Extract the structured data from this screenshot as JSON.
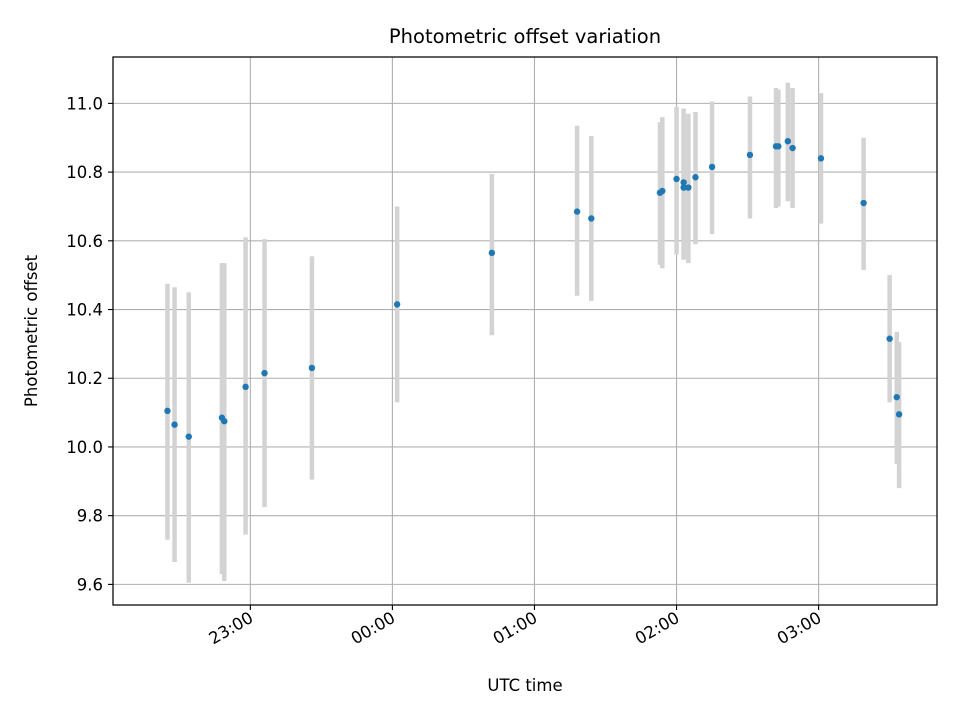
{
  "chart_data": {
    "type": "scatter",
    "title": "Photometric offset variation",
    "xlabel": "UTC time",
    "ylabel": "Photometric offset",
    "x_unit": "UTC time (HH:MM, evening to next morning)",
    "xlim": [
      "22:02",
      "03:50"
    ],
    "ylim": [
      9.54,
      11.135
    ],
    "x_ticks": [
      "23:00",
      "00:00",
      "01:00",
      "02:00",
      "03:00"
    ],
    "y_ticks": [
      "9.6",
      "9.8",
      "10.0",
      "10.2",
      "10.4",
      "10.6",
      "10.8",
      "11.0"
    ],
    "grid": true,
    "colors": {
      "point": "#1f77b4",
      "errorbar": "#d3d3d3",
      "grid": "#b0b0b0"
    },
    "points": [
      {
        "x": "22:25",
        "y": 10.105,
        "ylow": 9.73,
        "yhigh": 10.475
      },
      {
        "x": "22:28",
        "y": 10.065,
        "ylow": 9.665,
        "yhigh": 10.465
      },
      {
        "x": "22:34",
        "y": 10.03,
        "ylow": 9.605,
        "yhigh": 10.45
      },
      {
        "x": "22:48",
        "y": 10.085,
        "ylow": 9.63,
        "yhigh": 10.535
      },
      {
        "x": "22:49",
        "y": 10.075,
        "ylow": 9.61,
        "yhigh": 10.535
      },
      {
        "x": "22:58",
        "y": 10.175,
        "ylow": 9.745,
        "yhigh": 10.61
      },
      {
        "x": "23:06",
        "y": 10.215,
        "ylow": 9.825,
        "yhigh": 10.605
      },
      {
        "x": "23:26",
        "y": 10.23,
        "ylow": 9.905,
        "yhigh": 10.555
      },
      {
        "x": "00:02",
        "y": 10.415,
        "ylow": 10.13,
        "yhigh": 10.7
      },
      {
        "x": "00:42",
        "y": 10.565,
        "ylow": 10.325,
        "yhigh": 10.795
      },
      {
        "x": "01:18",
        "y": 10.685,
        "ylow": 10.44,
        "yhigh": 10.935
      },
      {
        "x": "01:24",
        "y": 10.665,
        "ylow": 10.425,
        "yhigh": 10.905
      },
      {
        "x": "01:53",
        "y": 10.74,
        "ylow": 10.53,
        "yhigh": 10.945
      },
      {
        "x": "01:54",
        "y": 10.745,
        "ylow": 10.52,
        "yhigh": 10.96
      },
      {
        "x": "02:00",
        "y": 10.78,
        "ylow": 10.56,
        "yhigh": 10.99
      },
      {
        "x": "02:03",
        "y": 10.755,
        "ylow": 10.545,
        "yhigh": 10.985
      },
      {
        "x": "02:03",
        "y": 10.77,
        "ylow": 10.55,
        "yhigh": 10.965
      },
      {
        "x": "02:05",
        "y": 10.755,
        "ylow": 10.535,
        "yhigh": 10.97
      },
      {
        "x": "02:08",
        "y": 10.785,
        "ylow": 10.59,
        "yhigh": 10.975
      },
      {
        "x": "02:15",
        "y": 10.815,
        "ylow": 10.62,
        "yhigh": 11.005
      },
      {
        "x": "02:31",
        "y": 10.85,
        "ylow": 10.665,
        "yhigh": 11.02
      },
      {
        "x": "02:42",
        "y": 10.875,
        "ylow": 10.695,
        "yhigh": 11.045
      },
      {
        "x": "02:43",
        "y": 10.875,
        "ylow": 10.7,
        "yhigh": 11.04
      },
      {
        "x": "02:47",
        "y": 10.89,
        "ylow": 10.715,
        "yhigh": 11.06
      },
      {
        "x": "02:49",
        "y": 10.87,
        "ylow": 10.695,
        "yhigh": 11.045
      },
      {
        "x": "03:01",
        "y": 10.84,
        "ylow": 10.65,
        "yhigh": 11.03
      },
      {
        "x": "03:19",
        "y": 10.71,
        "ylow": 10.515,
        "yhigh": 10.9
      },
      {
        "x": "03:30",
        "y": 10.315,
        "ylow": 10.13,
        "yhigh": 10.5
      },
      {
        "x": "03:33",
        "y": 10.145,
        "ylow": 9.95,
        "yhigh": 10.335
      },
      {
        "x": "03:34",
        "y": 10.095,
        "ylow": 9.88,
        "yhigh": 10.305
      }
    ]
  }
}
